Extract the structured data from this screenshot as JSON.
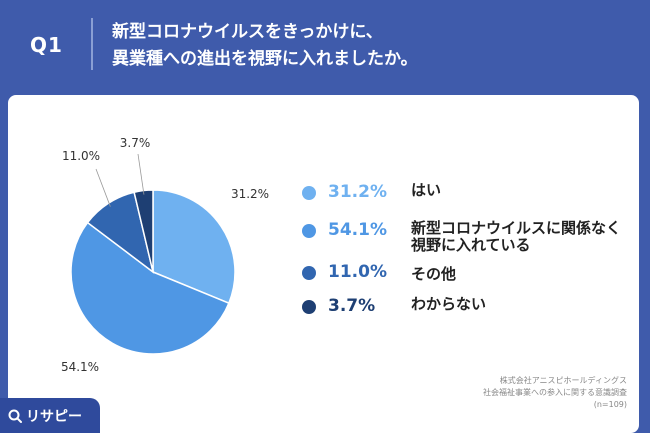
{
  "header": {
    "question_number": "Q1",
    "question_line1": "新型コロナウイルスをきっかけに、",
    "question_line2": "異業種への進出を視野に入れましたか。"
  },
  "chart_data": {
    "type": "pie",
    "title": "",
    "slices": [
      {
        "label": "はい",
        "value": 31.2,
        "display": "31.2%",
        "color": "#6fb1f0"
      },
      {
        "label": "新型コロナウイルスに関係なく視野に入れている",
        "label_lines": [
          "新型コロナウイルスに関係なく",
          "視野に入れている"
        ],
        "value": 54.1,
        "display": "54.1%",
        "color": "#4f97e4"
      },
      {
        "label": "その他",
        "value": 11.0,
        "display": "11.0%",
        "color": "#3166b0"
      },
      {
        "label": "わからない",
        "value": 3.7,
        "display": "3.7%",
        "color": "#1e3f73"
      }
    ],
    "legend_placement": "right"
  },
  "footnote": {
    "line1": "株式会社アニスピホールディングス",
    "line2": "社会福祉事業への参入に関する意識調査",
    "line3": "(n=109)"
  },
  "logo": {
    "text": "リサピー",
    "icon": "search-icon"
  },
  "colors": {
    "background": "#3f5bab",
    "card": "#ffffff",
    "logo_bg": "#2f4a9c"
  }
}
